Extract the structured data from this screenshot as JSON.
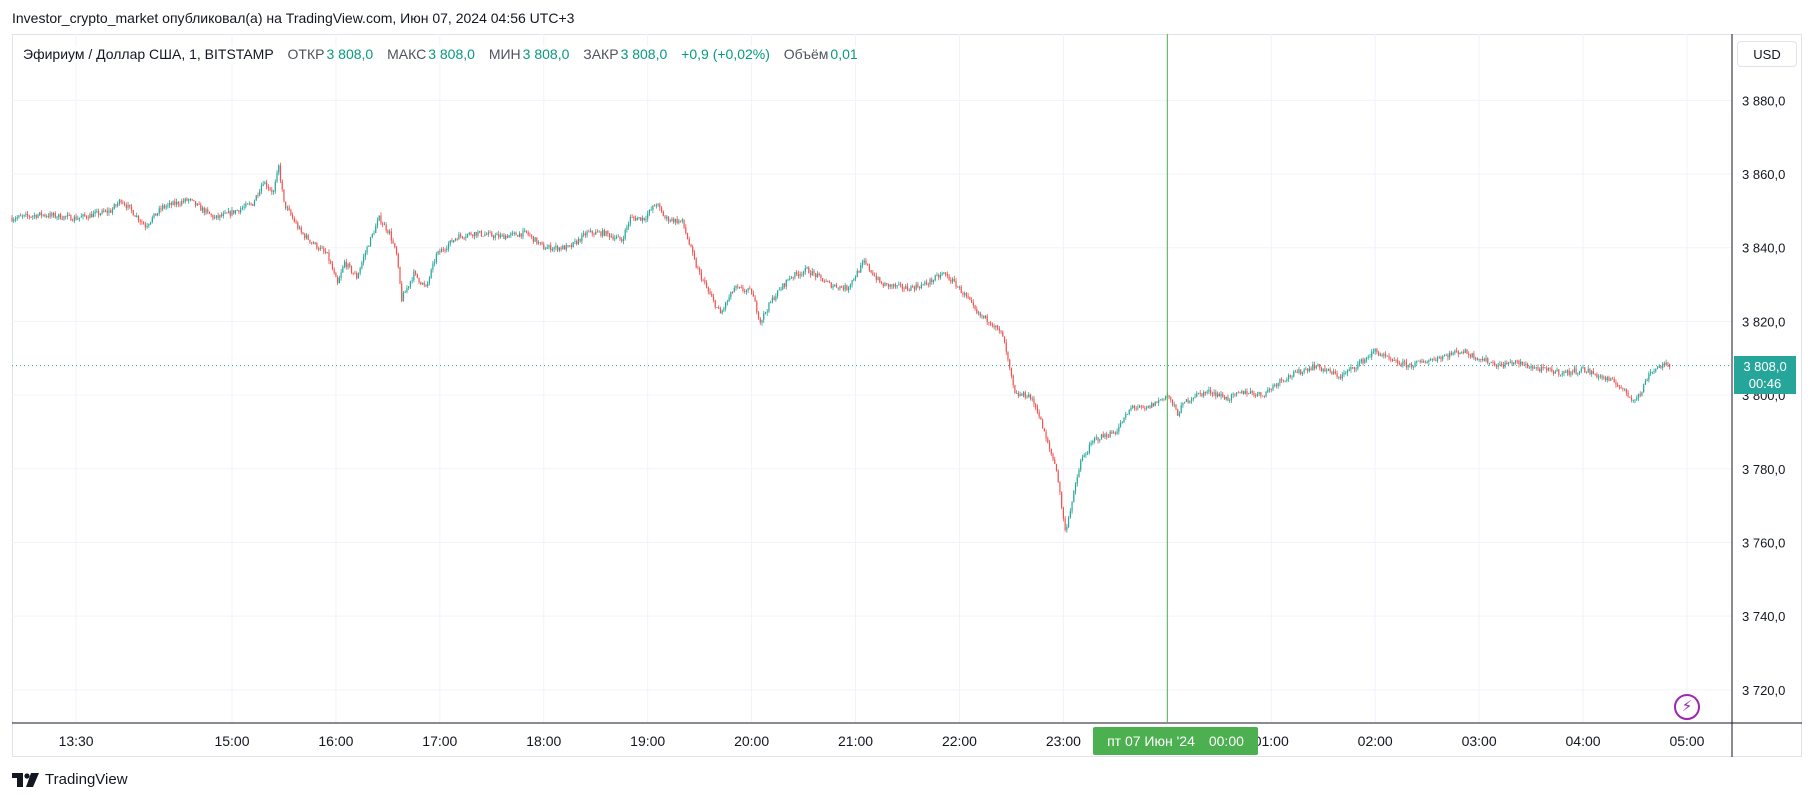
{
  "header": {
    "published_text": "Investor_crypto_market опубликовал(а) на TradingView.com, Июн 07, 2024 04:56 UTC+3"
  },
  "legend": {
    "symbol": "Эфириум / Доллар США, 1, BITSTAMP",
    "open_label": "ОТКР",
    "open_value": "3 808,0",
    "high_label": "МАКС",
    "high_value": "3 808,0",
    "low_label": "МИН",
    "low_value": "3 808,0",
    "close_label": "ЗАКР",
    "close_value": "3 808,0",
    "change": "+0,9 (+0,02%)",
    "volume_label": "Объём",
    "volume_value": "0,01"
  },
  "currency_button": "USD",
  "price_badge": {
    "price": "3 808,0",
    "countdown": "00:46"
  },
  "crosshair_date": {
    "date": "пт 07 Июн '24",
    "time": "00:00"
  },
  "brand": "TradingView",
  "colors": {
    "up": "#26a69a",
    "down": "#ef5350",
    "crosshair": "#4caf50",
    "grid": "#f0f3fa",
    "accent": "#9c27b0"
  },
  "icons": {
    "alert": "lightning-icon",
    "logo": "tradingview-logo-icon"
  },
  "chart_data": {
    "type": "candlestick",
    "symbol": "ETH/USD",
    "interval": "1",
    "exchange": "BITSTAMP",
    "y_ticks": [
      "3 880,0",
      "3 860,0",
      "3 840,0",
      "3 820,0",
      "3 800,0",
      "3 780,0",
      "3 760,0",
      "3 740,0",
      "3 720,0"
    ],
    "y_tick_values": [
      3880,
      3860,
      3840,
      3820,
      3800,
      3780,
      3760,
      3740,
      3720
    ],
    "ylim": [
      3711,
      3898
    ],
    "x_ticks": [
      "13:30",
      "15:00",
      "16:00",
      "17:00",
      "18:00",
      "19:00",
      "20:00",
      "21:00",
      "22:00",
      "23:00",
      "00:00",
      "01:00",
      "02:00",
      "03:00",
      "04:00",
      "05:00"
    ],
    "x_tick_minutes": [
      810,
      900,
      960,
      1020,
      1080,
      1140,
      1200,
      1260,
      1320,
      1380,
      1440,
      1500,
      1560,
      1620,
      1680,
      1740
    ],
    "xlim_minutes": [
      773,
      1766
    ],
    "last_price": 3808.0,
    "crosshair_minute": 1440,
    "grid": true,
    "path_points": [
      [
        773,
        3848
      ],
      [
        790,
        3849
      ],
      [
        810,
        3848
      ],
      [
        830,
        3850
      ],
      [
        836,
        3853
      ],
      [
        850,
        3846
      ],
      [
        860,
        3851
      ],
      [
        875,
        3853
      ],
      [
        890,
        3848
      ],
      [
        897,
        3849
      ],
      [
        912,
        3852
      ],
      [
        918,
        3858
      ],
      [
        924,
        3855
      ],
      [
        927,
        3862
      ],
      [
        930,
        3852
      ],
      [
        940,
        3844
      ],
      [
        955,
        3838
      ],
      [
        961,
        3830
      ],
      [
        965,
        3836
      ],
      [
        972,
        3832
      ],
      [
        978,
        3840
      ],
      [
        985,
        3848
      ],
      [
        991,
        3844
      ],
      [
        995,
        3838
      ],
      [
        998,
        3826
      ],
      [
        1005,
        3833
      ],
      [
        1012,
        3829
      ],
      [
        1018,
        3838
      ],
      [
        1030,
        3843
      ],
      [
        1040,
        3844
      ],
      [
        1055,
        3843
      ],
      [
        1070,
        3844
      ],
      [
        1080,
        3840
      ],
      [
        1095,
        3840
      ],
      [
        1105,
        3844
      ],
      [
        1115,
        3844
      ],
      [
        1125,
        3842
      ],
      [
        1130,
        3848
      ],
      [
        1138,
        3848
      ],
      [
        1145,
        3852
      ],
      [
        1150,
        3848
      ],
      [
        1160,
        3847
      ],
      [
        1168,
        3835
      ],
      [
        1175,
        3828
      ],
      [
        1182,
        3822
      ],
      [
        1190,
        3829
      ],
      [
        1200,
        3828
      ],
      [
        1205,
        3820
      ],
      [
        1212,
        3826
      ],
      [
        1222,
        3832
      ],
      [
        1232,
        3834
      ],
      [
        1245,
        3830
      ],
      [
        1255,
        3829
      ],
      [
        1265,
        3836
      ],
      [
        1275,
        3830
      ],
      [
        1290,
        3829
      ],
      [
        1300,
        3830
      ],
      [
        1311,
        3833
      ],
      [
        1318,
        3830
      ],
      [
        1325,
        3826
      ],
      [
        1330,
        3822
      ],
      [
        1338,
        3820
      ],
      [
        1345,
        3816
      ],
      [
        1352,
        3800
      ],
      [
        1360,
        3800
      ],
      [
        1365,
        3796
      ],
      [
        1370,
        3788
      ],
      [
        1376,
        3780
      ],
      [
        1381,
        3763
      ],
      [
        1385,
        3771
      ],
      [
        1390,
        3782
      ],
      [
        1398,
        3788
      ],
      [
        1410,
        3790
      ],
      [
        1420,
        3797
      ],
      [
        1427,
        3796
      ],
      [
        1440,
        3800
      ],
      [
        1446,
        3795
      ],
      [
        1450,
        3798
      ],
      [
        1456,
        3800
      ],
      [
        1465,
        3801
      ],
      [
        1475,
        3799
      ],
      [
        1485,
        3801
      ],
      [
        1495,
        3800
      ],
      [
        1505,
        3804
      ],
      [
        1515,
        3806
      ],
      [
        1525,
        3808
      ],
      [
        1540,
        3805
      ],
      [
        1552,
        3809
      ],
      [
        1560,
        3812
      ],
      [
        1570,
        3809
      ],
      [
        1580,
        3808
      ],
      [
        1595,
        3810
      ],
      [
        1610,
        3812
      ],
      [
        1620,
        3810
      ],
      [
        1632,
        3808
      ],
      [
        1640,
        3809
      ],
      [
        1655,
        3807
      ],
      [
        1670,
        3806
      ],
      [
        1680,
        3807
      ],
      [
        1690,
        3805
      ],
      [
        1700,
        3803
      ],
      [
        1708,
        3799
      ],
      [
        1713,
        3800
      ],
      [
        1718,
        3806
      ],
      [
        1725,
        3808
      ],
      [
        1730,
        3808
      ]
    ]
  }
}
